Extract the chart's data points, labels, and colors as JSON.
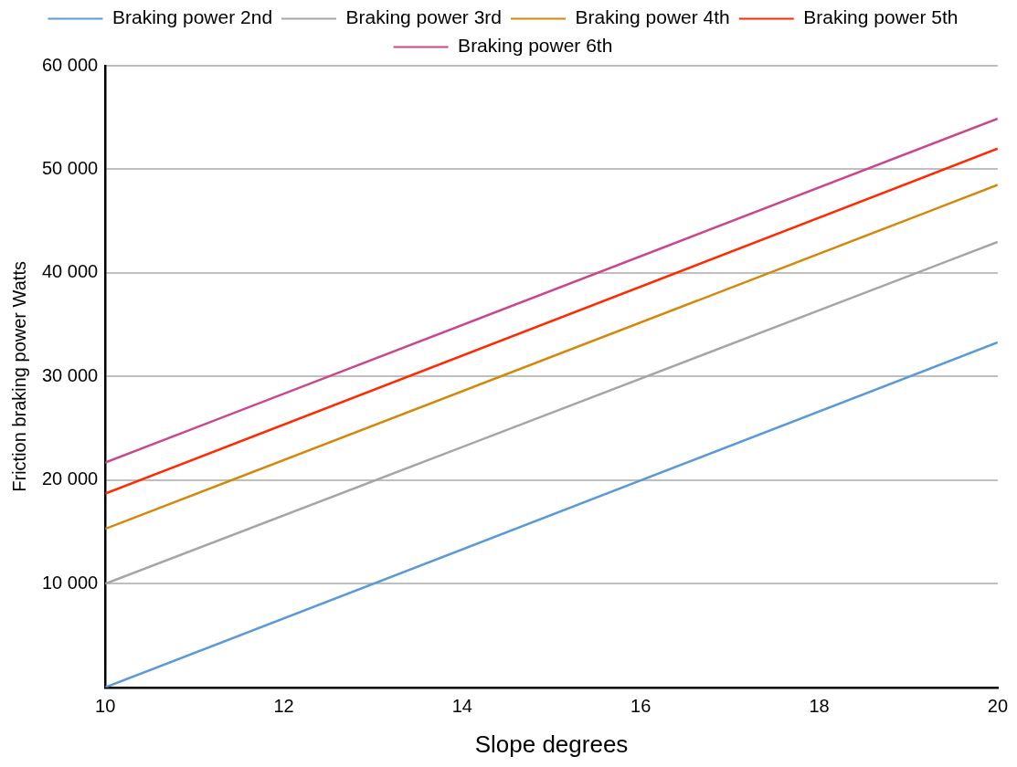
{
  "chart_data": {
    "type": "line",
    "xlabel": "Slope degrees",
    "ylabel": "Friction braking power Watts",
    "x": [
      10,
      20
    ],
    "series": [
      {
        "name": "Braking power 2nd",
        "color": "#5b9bd5",
        "values": [
          0,
          33300
        ]
      },
      {
        "name": "Braking power 3rd",
        "color": "#a5a5a5",
        "values": [
          10000,
          43000
        ]
      },
      {
        "name": "Braking power 4th",
        "color": "#d4880a",
        "values": [
          15300,
          48500
        ]
      },
      {
        "name": "Braking power 5th",
        "color": "#ff2a00",
        "values": [
          18700,
          52000
        ]
      },
      {
        "name": "Braking power 6th",
        "color": "#c9488d",
        "values": [
          21700,
          54900
        ]
      }
    ],
    "xlim": [
      10,
      20
    ],
    "xticks": [
      10,
      12,
      14,
      16,
      18,
      20
    ],
    "ylim": [
      0,
      60000
    ],
    "yticks": [
      {
        "value": 0,
        "label": null
      },
      {
        "value": 10000,
        "label": "10 000"
      },
      {
        "value": 20000,
        "label": "20 000"
      },
      {
        "value": 30000,
        "label": "30 000"
      },
      {
        "value": 40000,
        "label": "40 000"
      },
      {
        "value": 50000,
        "label": "50 000"
      },
      {
        "value": 60000,
        "label": "60 000"
      }
    ],
    "grid": "y",
    "legend": "top",
    "marker": "none",
    "line_style": "solid"
  }
}
